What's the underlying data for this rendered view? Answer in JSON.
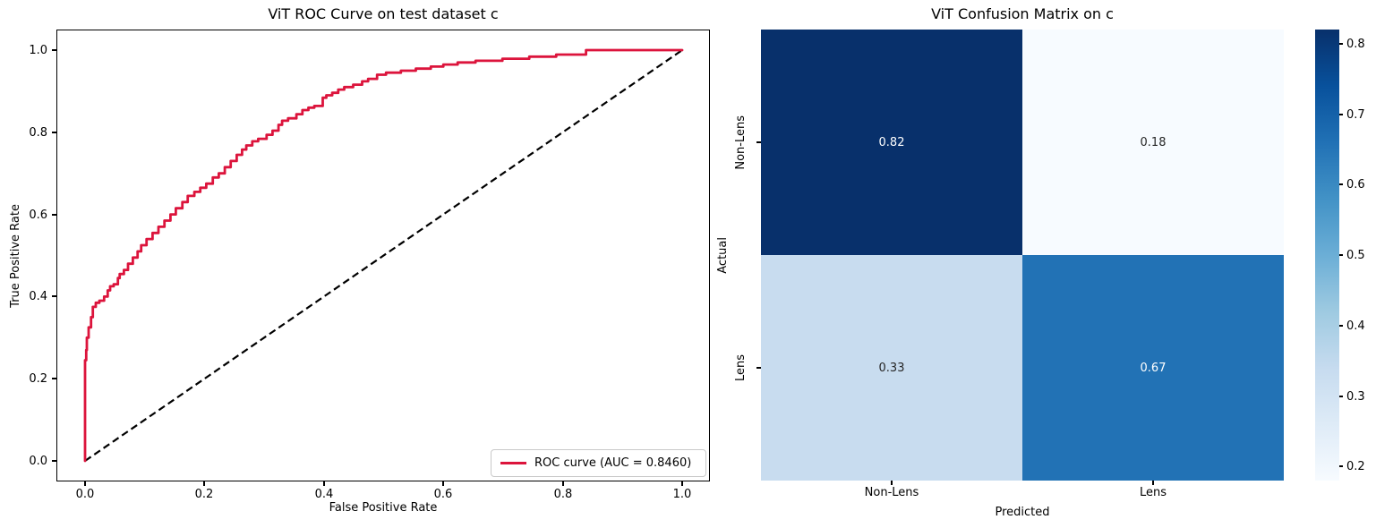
{
  "roc_plot": {
    "title": "ViT ROC Curve on test dataset c",
    "xlabel": "False Positive Rate",
    "ylabel": "True Positive Rate",
    "x_ticks": [
      "0.0",
      "0.2",
      "0.4",
      "0.6",
      "0.8",
      "1.0"
    ],
    "y_ticks": [
      "0.0",
      "0.2",
      "0.4",
      "0.6",
      "0.8",
      "1.0"
    ],
    "legend_label": "ROC curve (AUC = 0.8460)",
    "curve_color": "#dc143c",
    "diagonal_color": "#000000"
  },
  "confusion_matrix": {
    "title": "ViT Confusion Matrix on c",
    "xlabel": "Predicted",
    "ylabel": "Actual",
    "x_ticks": [
      "Non-Lens",
      "Lens"
    ],
    "y_ticks": [
      "Non-Lens",
      "Lens"
    ],
    "cell_labels": [
      [
        "0.82",
        "0.18"
      ],
      [
        "0.33",
        "0.67"
      ]
    ],
    "cell_colors": [
      [
        "#08306b",
        "#f7fbff"
      ],
      [
        "#c8dcef",
        "#2272b5"
      ]
    ],
    "cell_text_colors": [
      [
        "#ffffff",
        "#262626"
      ],
      [
        "#262626",
        "#ffffff"
      ]
    ],
    "colorbar_ticks": [
      "0.8",
      "0.7",
      "0.6",
      "0.5",
      "0.4",
      "0.3",
      "0.2"
    ],
    "colorbar_stops": [
      "#f7fbff",
      "#deebf7",
      "#c6dbef",
      "#9ecae1",
      "#6baed6",
      "#4292c6",
      "#2171b5",
      "#08519c",
      "#08306b"
    ]
  },
  "chart_data": [
    {
      "type": "line",
      "title": "ViT ROC Curve on test dataset c",
      "xlabel": "False Positive Rate",
      "ylabel": "True Positive Rate",
      "xlim": [
        0.0,
        1.0
      ],
      "ylim": [
        0.0,
        1.0
      ],
      "grid": false,
      "legend_position": "lower right",
      "auc": 0.846,
      "series": [
        {
          "name": "ROC curve (AUC = 0.8460)",
          "color": "#dc143c",
          "line_style": "solid",
          "line_width": 2.8,
          "step": true,
          "points": [
            [
              0.0,
              0.0
            ],
            [
              0.002,
              0.245
            ],
            [
              0.003,
              0.27
            ],
            [
              0.006,
              0.3
            ],
            [
              0.01,
              0.325
            ],
            [
              0.013,
              0.35
            ],
            [
              0.018,
              0.375
            ],
            [
              0.024,
              0.385
            ],
            [
              0.032,
              0.39
            ],
            [
              0.038,
              0.4
            ],
            [
              0.042,
              0.415
            ],
            [
              0.048,
              0.425
            ],
            [
              0.055,
              0.43
            ],
            [
              0.058,
              0.445
            ],
            [
              0.065,
              0.455
            ],
            [
              0.072,
              0.465
            ],
            [
              0.08,
              0.48
            ],
            [
              0.088,
              0.495
            ],
            [
              0.094,
              0.51
            ],
            [
              0.103,
              0.525
            ],
            [
              0.113,
              0.54
            ],
            [
              0.123,
              0.555
            ],
            [
              0.133,
              0.57
            ],
            [
              0.143,
              0.585
            ],
            [
              0.152,
              0.6
            ],
            [
              0.163,
              0.615
            ],
            [
              0.172,
              0.63
            ],
            [
              0.183,
              0.645
            ],
            [
              0.193,
              0.655
            ],
            [
              0.203,
              0.665
            ],
            [
              0.214,
              0.675
            ],
            [
              0.224,
              0.69
            ],
            [
              0.234,
              0.7
            ],
            [
              0.244,
              0.715
            ],
            [
              0.254,
              0.73
            ],
            [
              0.263,
              0.745
            ],
            [
              0.27,
              0.758
            ],
            [
              0.28,
              0.768
            ],
            [
              0.29,
              0.778
            ],
            [
              0.304,
              0.784
            ],
            [
              0.314,
              0.794
            ],
            [
              0.324,
              0.804
            ],
            [
              0.33,
              0.818
            ],
            [
              0.34,
              0.828
            ],
            [
              0.354,
              0.834
            ],
            [
              0.364,
              0.844
            ],
            [
              0.374,
              0.854
            ],
            [
              0.384,
              0.86
            ],
            [
              0.398,
              0.864
            ],
            [
              0.404,
              0.884
            ],
            [
              0.414,
              0.89
            ],
            [
              0.424,
              0.896
            ],
            [
              0.434,
              0.904
            ],
            [
              0.449,
              0.91
            ],
            [
              0.464,
              0.916
            ],
            [
              0.474,
              0.924
            ],
            [
              0.489,
              0.93
            ],
            [
              0.504,
              0.94
            ],
            [
              0.529,
              0.945
            ],
            [
              0.554,
              0.95
            ],
            [
              0.579,
              0.955
            ],
            [
              0.6,
              0.96
            ],
            [
              0.624,
              0.965
            ],
            [
              0.654,
              0.97
            ],
            [
              0.699,
              0.974
            ],
            [
              0.744,
              0.979
            ],
            [
              0.789,
              0.984
            ],
            [
              0.839,
              0.989
            ],
            [
              0.879,
              1.0
            ],
            [
              1.0,
              1.0
            ]
          ]
        },
        {
          "name": "chance diagonal",
          "color": "#000000",
          "line_style": "dashed",
          "line_width": 2.2,
          "step": false,
          "points": [
            [
              0.0,
              0.0
            ],
            [
              1.0,
              1.0
            ]
          ]
        }
      ]
    },
    {
      "type": "heatmap",
      "title": "ViT Confusion Matrix on c",
      "xlabel": "Predicted",
      "ylabel": "Actual",
      "x_categories": [
        "Non-Lens",
        "Lens"
      ],
      "y_categories": [
        "Non-Lens",
        "Lens"
      ],
      "values": [
        [
          0.82,
          0.18
        ],
        [
          0.33,
          0.67
        ]
      ],
      "vmin": 0.18,
      "vmax": 0.82,
      "colormap": "Blues",
      "colorbar_ticks": [
        0.8,
        0.7,
        0.6,
        0.5,
        0.4,
        0.3,
        0.2
      ],
      "legend_position": "right-colorbar"
    }
  ]
}
